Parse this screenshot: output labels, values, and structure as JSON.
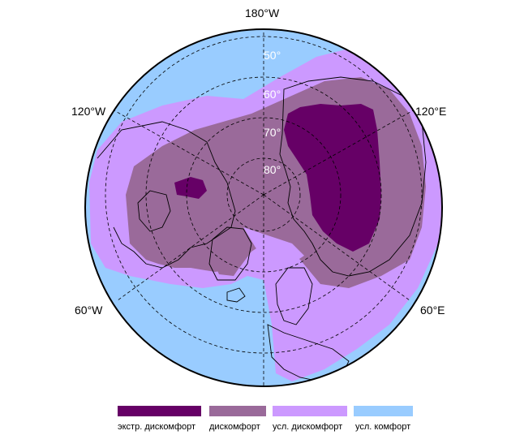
{
  "map": {
    "projection": "north polar stereographic",
    "longitude_labels": {
      "top": "180°W",
      "upper_left": "120°W",
      "upper_right": "120°E",
      "lower_left": "60°W",
      "lower_right": "60°E"
    },
    "latitude_labels": [
      "50°",
      "60°",
      "70°",
      "80°"
    ],
    "graticule": "dashed",
    "colors": {
      "extreme_discomfort": "#660066",
      "discomfort": "#9a6a9a",
      "conditional_discomfort": "#cc99ff",
      "conditional_comfort": "#99ccff",
      "land_outline": "#000000"
    }
  },
  "legend": {
    "placement": "bottom",
    "items": [
      {
        "label": "экстр. дискомфорт",
        "color": "#660066"
      },
      {
        "label": "дискомфорт",
        "color": "#9a6a9a"
      },
      {
        "label": "усл. дискомфорт",
        "color": "#cc99ff"
      },
      {
        "label": "усл. комфорт",
        "color": "#99ccff"
      }
    ]
  }
}
